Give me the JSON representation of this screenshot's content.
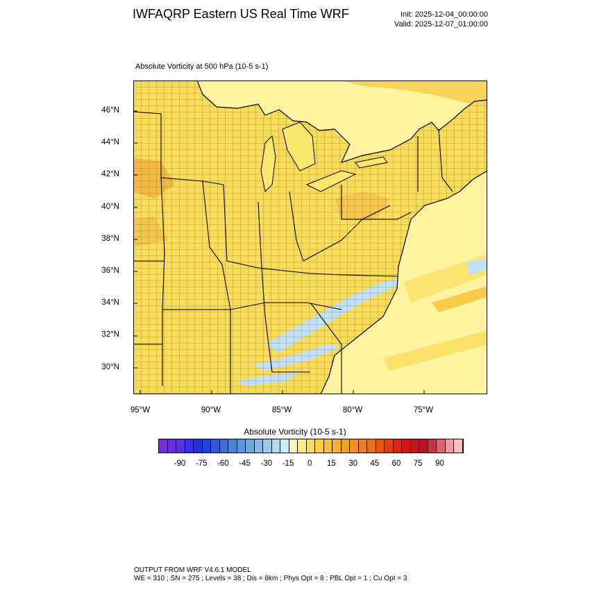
{
  "header": {
    "title": "IWFAQRP Eastern US Real Time WRF",
    "init": "Init: 2025-12-04_00:00:00",
    "valid": "Valid: 2025-12-07_01:00:00"
  },
  "plot": {
    "subtitle": "Absolute Vorticity at 500 hPa   (10-5 s-1)",
    "lat_labels": [
      "46°N",
      "44°N",
      "42°N",
      "40°N",
      "38°N",
      "36°N",
      "34°N",
      "32°N",
      "30°N"
    ],
    "lon_labels": [
      "95°W",
      "90°W",
      "85°W",
      "80°W",
      "75°W"
    ],
    "colors": {
      "base_yellow": "#fbe66e",
      "land_yellow": "#f8dc5a",
      "ocean_pale": "#fdf3a0",
      "orange": "#f3b53e",
      "light_blue": "#c3e1f4"
    }
  },
  "colorbar": {
    "title": "Absolute Vorticity  (10-5 s-1)",
    "tick_labels": [
      "-90",
      "-75",
      "-60",
      "-45",
      "-30",
      "-15",
      "0",
      "15",
      "30",
      "45",
      "60",
      "75",
      "90"
    ],
    "colors": [
      "#7a2be0",
      "#6a2ee8",
      "#5530f0",
      "#3a30f5",
      "#2030f0",
      "#2540e8",
      "#3058e0",
      "#3a6fd8",
      "#4585d8",
      "#5598dc",
      "#6aaae0",
      "#80bce6",
      "#98cbeb",
      "#b2d8f0",
      "#ccebf8",
      "#fdf6b8",
      "#fcea88",
      "#fbdc60",
      "#fad040",
      "#f9c030",
      "#f8b028",
      "#f7a020",
      "#f69018",
      "#f57e12",
      "#f46a0e",
      "#f0520c",
      "#ec3a0a",
      "#e82008",
      "#e00e0e",
      "#d01018",
      "#c01020",
      "#d03040",
      "#e06070",
      "#f09aa0",
      "#fbbcc0"
    ]
  },
  "footer": {
    "line1": "OUTPUT FROM WRF V4.6.1 MODEL",
    "line2": "WE = 310 ; SN = 275 ; Levels = 38 ; Dis = 8km ; Phys Opt = 8 ; PBL Opt = 1 ; Cu Opt = 3"
  }
}
